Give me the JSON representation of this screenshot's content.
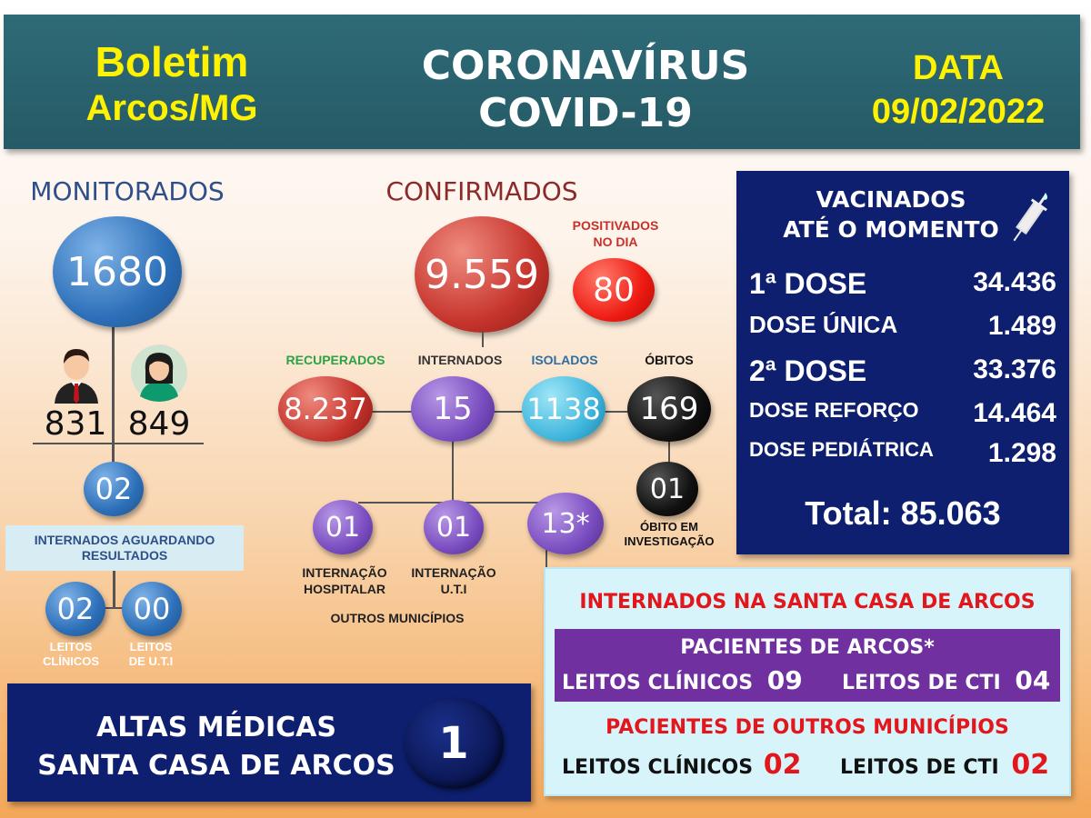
{
  "header": {
    "boletim_line1": "Boletim",
    "boletim_line2": "Arcos/MG",
    "title_line1": "CORONAVÍRUS",
    "title_line2": "COVID-19",
    "data_label": "DATA",
    "data_value": "09/02/2022"
  },
  "monitorados": {
    "title": "MONITORADOS",
    "total": "1680",
    "men": "831",
    "women": "849",
    "awaiting_value": "02",
    "awaiting_label": "INTERNADOS AGUARDANDO RESULTADOS",
    "leitos_clinicos_value": "02",
    "leitos_clinicos_label_1": "LEITOS",
    "leitos_clinicos_label_2": "CLÍNICOS",
    "leitos_uti_value": "00",
    "leitos_uti_label_1": "LEITOS",
    "leitos_uti_label_2": "DE U.T.I"
  },
  "confirmados": {
    "title": "CONFIRMADOS",
    "total": "9.559",
    "positivados_label_1": "POSITIVADOS",
    "positivados_label_2": "NO DIA",
    "positivados_value": "80",
    "recuperados_label": "RECUPERADOS",
    "recuperados_value": "8.237",
    "internados_label": "INTERNADOS",
    "internados_value": "15",
    "isolados_label": "ISOLADOS",
    "isolados_value": "1138",
    "obitos_label": "ÓBITOS",
    "obitos_value": "169",
    "obito_invest_value": "01",
    "obito_invest_label_1": "ÓBITO EM",
    "obito_invest_label_2": "INVESTIGAÇÃO",
    "int_hosp_value": "01",
    "int_hosp_label_1": "INTERNAÇÃO",
    "int_hosp_label_2": "HOSPITALAR",
    "int_uti_value": "01",
    "int_uti_label_1": "INTERNAÇÃO",
    "int_uti_label_2": "U.T.I",
    "outros_value": "13*",
    "outros_label": "OUTROS MUNICÍPIOS"
  },
  "vacinados": {
    "title_1": "VACINADOS",
    "title_2": "ATÉ O MOMENTO",
    "rows": [
      {
        "label": "1ª DOSE",
        "value": "34.436"
      },
      {
        "label": "DOSE ÚNICA",
        "value": "1.489"
      },
      {
        "label": "2ª DOSE",
        "value": "33.376"
      },
      {
        "label": "DOSE REFORÇO",
        "value": "14.464"
      },
      {
        "label": "DOSE PEDIÁTRICA",
        "value": "1.298"
      }
    ],
    "total": "Total: 85.063"
  },
  "altas": {
    "line1": "ALTAS MÉDICAS",
    "line2": "SANTA CASA DE ARCOS",
    "value": "1"
  },
  "santa_casa": {
    "title": "INTERNADOS NA SANTA CASA DE ARCOS",
    "arcos_title": "PACIENTES DE ARCOS*",
    "arcos_clinicos_label": "LEITOS CLÍNICOS",
    "arcos_clinicos_value": "09",
    "arcos_cti_label": "LEITOS DE CTI",
    "arcos_cti_value": "04",
    "outros_title": "PACIENTES DE OUTROS MUNICÍPIOS",
    "outros_clinicos_label": "LEITOS CLÍNICOS",
    "outros_clinicos_value": "02",
    "outros_cti_label": "LEITOS DE CTI",
    "outros_cti_value": "02"
  },
  "colors": {
    "header_bg": "#2e6b77",
    "yellow": "#fff200",
    "navy": "#0d1f6e",
    "red": "#e3161b",
    "purple": "#7030a0"
  },
  "icons": [
    "man-icon",
    "woman-icon",
    "syringe-icon"
  ]
}
